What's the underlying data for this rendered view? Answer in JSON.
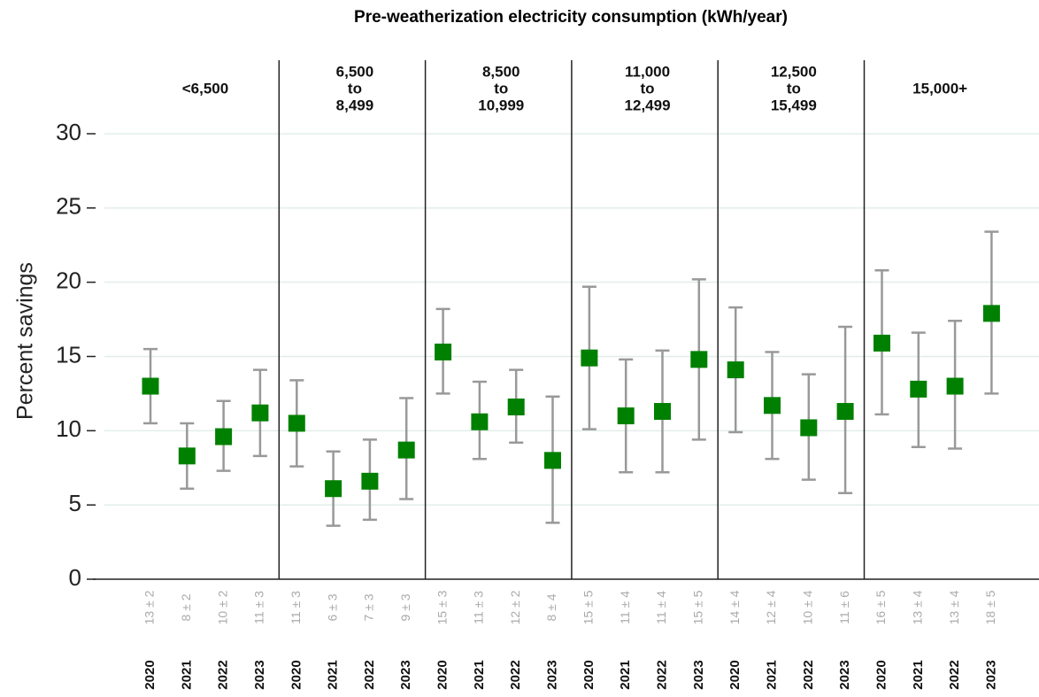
{
  "chart_data": {
    "type": "errorbar",
    "title": "Pre-weatherization electricity consumption (kWh/year)",
    "ylabel": "Percent savings",
    "ylim": [
      0,
      30
    ],
    "yticks": [
      0,
      5,
      10,
      15,
      20,
      25,
      30
    ],
    "grid": true,
    "color": "#008000",
    "error_color": "#999999",
    "facets": [
      {
        "label": [
          "<6,500"
        ],
        "categories": [
          "2020",
          "2021",
          "2022",
          "2023"
        ],
        "values": [
          13.0,
          8.3,
          9.6,
          11.2
        ],
        "lower": [
          10.5,
          6.1,
          7.3,
          8.3
        ],
        "upper": [
          15.5,
          10.5,
          12.0,
          14.1
        ],
        "value_labels": [
          "13 ± 2",
          "8 ± 2",
          "10 ± 2",
          "11 ± 3"
        ]
      },
      {
        "label": [
          "6,500",
          "to",
          "8,499"
        ],
        "categories": [
          "2020",
          "2021",
          "2022",
          "2023"
        ],
        "values": [
          10.5,
          6.1,
          6.6,
          8.7
        ],
        "lower": [
          7.6,
          3.6,
          4.0,
          5.4
        ],
        "upper": [
          13.4,
          8.6,
          9.4,
          12.2
        ],
        "value_labels": [
          "11 ± 3",
          "6 ± 3",
          "7 ± 3",
          "9 ± 3"
        ]
      },
      {
        "label": [
          "8,500",
          "to",
          "10,999"
        ],
        "categories": [
          "2020",
          "2021",
          "2022",
          "2023"
        ],
        "values": [
          15.3,
          10.6,
          11.6,
          8.0
        ],
        "lower": [
          12.5,
          8.1,
          9.2,
          3.8
        ],
        "upper": [
          18.2,
          13.3,
          14.1,
          12.3
        ],
        "value_labels": [
          "15 ± 3",
          "11 ± 3",
          "12 ± 2",
          "8 ± 4"
        ]
      },
      {
        "label": [
          "11,000",
          "to",
          "12,499"
        ],
        "categories": [
          "2020",
          "2021",
          "2022",
          "2023"
        ],
        "values": [
          14.9,
          11.0,
          11.3,
          14.8
        ],
        "lower": [
          10.1,
          7.2,
          7.2,
          9.4
        ],
        "upper": [
          19.7,
          14.8,
          15.4,
          20.2
        ],
        "value_labels": [
          "15 ± 5",
          "11 ± 4",
          "11 ± 4",
          "15 ± 5"
        ]
      },
      {
        "label": [
          "12,500",
          "to",
          "15,499"
        ],
        "categories": [
          "2020",
          "2021",
          "2022",
          "2023"
        ],
        "values": [
          14.1,
          11.7,
          10.2,
          11.3
        ],
        "lower": [
          9.9,
          8.1,
          6.7,
          5.8
        ],
        "upper": [
          18.3,
          15.3,
          13.8,
          17.0
        ],
        "value_labels": [
          "14 ± 4",
          "12 ± 4",
          "10 ± 4",
          "11 ± 6"
        ]
      },
      {
        "label": [
          "15,000+"
        ],
        "categories": [
          "2020",
          "2021",
          "2022",
          "2023"
        ],
        "values": [
          15.9,
          12.8,
          13.0,
          17.9
        ],
        "lower": [
          11.1,
          8.9,
          8.8,
          12.5
        ],
        "upper": [
          20.8,
          16.6,
          17.4,
          23.4
        ],
        "value_labels": [
          "16 ± 5",
          "13 ± 4",
          "13 ± 4",
          "18 ± 5"
        ]
      }
    ]
  }
}
